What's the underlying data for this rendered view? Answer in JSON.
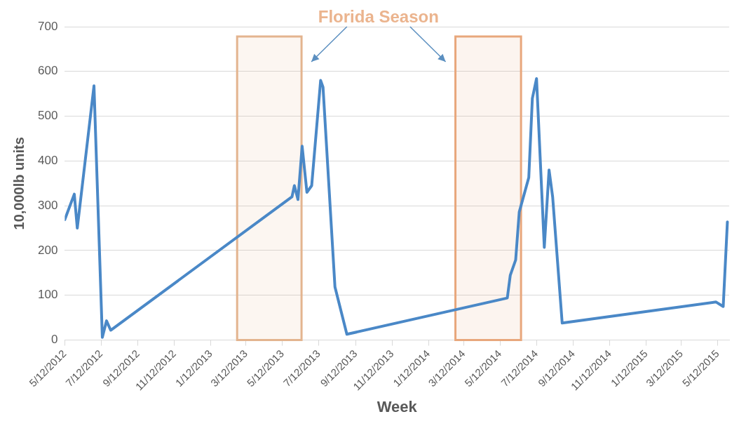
{
  "chart_data": {
    "type": "line",
    "xlabel": "Week",
    "ylabel": "10,000lb units",
    "annotations": [
      "Florida Season"
    ],
    "x": [
      "2012-05-12",
      "2012-05-28",
      "2012-06-02",
      "2012-06-30",
      "2012-07-14",
      "2012-07-21",
      "2012-07-28",
      "2013-05-28",
      "2013-06-01",
      "2013-06-07",
      "2013-06-14",
      "2013-06-22",
      "2013-06-30",
      "2013-07-15",
      "2013-07-19",
      "2013-08-08",
      "2013-08-28",
      "2014-05-24",
      "2014-05-29",
      "2014-06-07",
      "2014-06-13",
      "2014-06-29",
      "2014-07-05",
      "2014-07-12",
      "2014-07-25",
      "2014-08-02",
      "2014-08-08",
      "2014-08-24",
      "2015-05-09",
      "2015-05-21",
      "2015-05-28"
    ],
    "values": [
      269,
      326,
      250,
      568,
      6,
      43,
      22,
      320,
      345,
      314,
      433,
      330,
      345,
      580,
      565,
      119,
      13,
      94,
      145,
      179,
      286,
      363,
      540,
      584,
      207,
      380,
      320,
      38,
      85,
      75,
      264
    ],
    "color": "#4a88c7",
    "line_style": "solid",
    "marker": "none",
    "bands": [
      {
        "axis": "x",
        "from": "2013-02-25",
        "to": "2013-06-13",
        "color": "#e3b48f"
      },
      {
        "axis": "x",
        "from": "2014-02-26",
        "to": "2014-06-16",
        "color": "#e8a77c"
      }
    ],
    "xlim": [
      "2012-05-12",
      "2015-05-31"
    ],
    "xticks": [
      {
        "value": "2012-05-12",
        "label": "5/12/2012"
      },
      {
        "value": "2012-07-12",
        "label": "7/12/2012"
      },
      {
        "value": "2012-09-12",
        "label": "9/12/2012"
      },
      {
        "value": "2012-11-12",
        "label": "11/12/2012"
      },
      {
        "value": "2013-01-12",
        "label": "1/12/2013"
      },
      {
        "value": "2013-03-12",
        "label": "3/12/2013"
      },
      {
        "value": "2013-05-12",
        "label": "5/12/2013"
      },
      {
        "value": "2013-07-12",
        "label": "7/12/2013"
      },
      {
        "value": "2013-09-12",
        "label": "9/12/2013"
      },
      {
        "value": "2013-11-12",
        "label": "11/12/2013"
      },
      {
        "value": "2014-01-12",
        "label": "1/12/2014"
      },
      {
        "value": "2014-03-12",
        "label": "3/12/2014"
      },
      {
        "value": "2014-05-12",
        "label": "5/12/2014"
      },
      {
        "value": "2014-07-12",
        "label": "7/12/2014"
      },
      {
        "value": "2014-09-12",
        "label": "9/12/2014"
      },
      {
        "value": "2014-11-12",
        "label": "11/12/2014"
      },
      {
        "value": "2015-01-12",
        "label": "1/12/2015"
      },
      {
        "value": "2015-03-12",
        "label": "3/12/2015"
      },
      {
        "value": "2015-05-12",
        "label": "5/12/2015"
      }
    ],
    "ylim": [
      0,
      700
    ],
    "yticks": [
      0,
      100,
      200,
      300,
      400,
      500,
      600,
      700
    ],
    "grid": "y",
    "legend": false
  }
}
